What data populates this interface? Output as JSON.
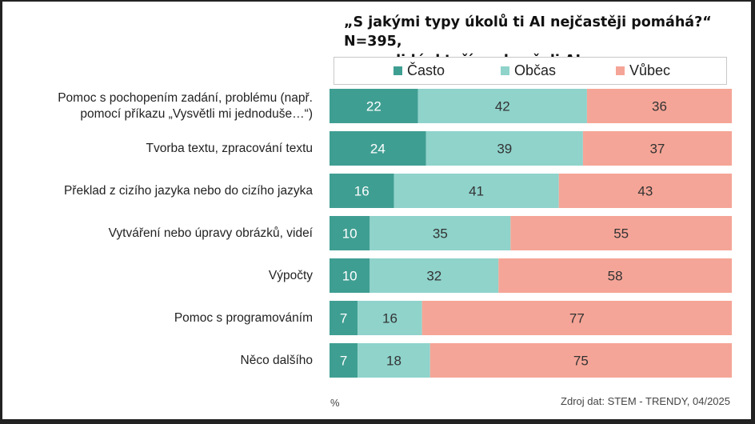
{
  "chart_data": {
    "type": "bar",
    "orientation": "horizontal",
    "stacked": true,
    "title": "„S jakými typy úkolů ti AI nejčastěji pomáhá?“ N=395, pouze  lidé, kteří vyzkoušeli AI",
    "title_lines": [
      "„S jakými typy úkolů ti AI nejčastěji pomáhá?“ N=395,",
      "pouze  lidé, kteří vyzkoušeli AI"
    ],
    "legend_position": "top",
    "xlim": [
      0,
      100
    ],
    "unit_label": "%",
    "source": "Zdroj dat: STEM - TRENDY, 04/2025",
    "categories": [
      "Pomoc s pochopením zadání, problému (např. pomocí příkazu „Vysvětli mi jednoduše…“)",
      "Tvorba textu, zpracování textu",
      "Překlad z cizího jazyka nebo do cizího jazyka",
      "Vytváření nebo úpravy obrázků, videí",
      "Výpočty",
      "Pomoc s programováním",
      "Něco dalšího"
    ],
    "category_lines": [
      [
        "Pomoc s pochopením zadání, problému (např.",
        "pomocí příkazu „Vysvětli mi jednoduše…“)"
      ],
      [
        "Tvorba textu, zpracování textu"
      ],
      [
        "Překlad z cizího jazyka nebo do cizího jazyka"
      ],
      [
        "Vytváření nebo úpravy obrázků, videí"
      ],
      [
        "Výpočty"
      ],
      [
        "Pomoc s programováním"
      ],
      [
        "Něco dalšího"
      ]
    ],
    "series": [
      {
        "name": "Často",
        "color": "#3f9e92",
        "values": [
          22,
          24,
          16,
          10,
          10,
          7,
          7
        ]
      },
      {
        "name": "Občas",
        "color": "#8fd3cb",
        "values": [
          42,
          39,
          41,
          35,
          32,
          16,
          18
        ]
      },
      {
        "name": "Vůbec",
        "color": "#f5a597",
        "values": [
          36,
          37,
          43,
          55,
          58,
          77,
          75
        ]
      }
    ]
  }
}
